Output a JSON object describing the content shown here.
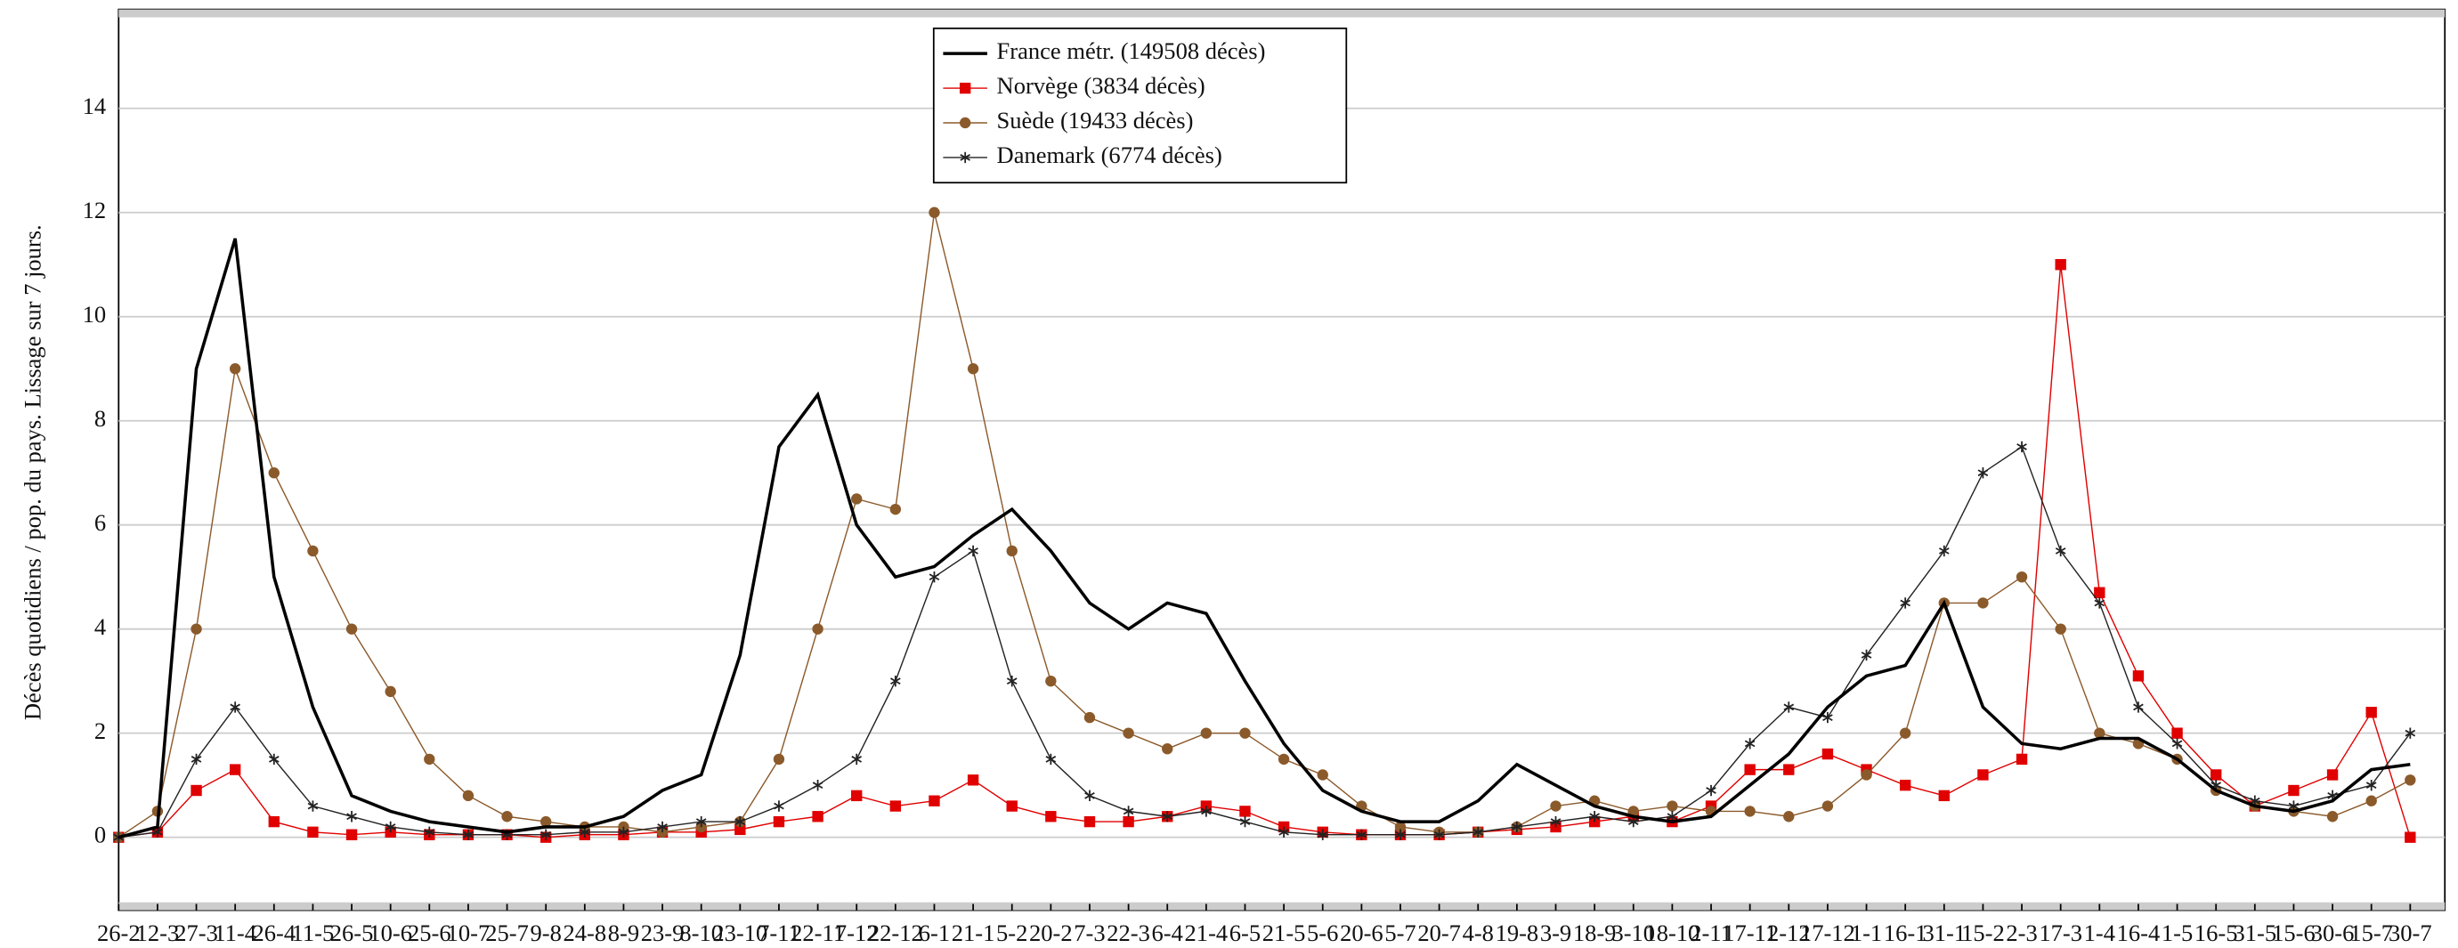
{
  "chart_data": {
    "type": "line",
    "ylabel": "Décès quotidiens / pop. du pays. Lissage sur 7 jours.",
    "categories": [
      "26-2",
      "12-3",
      "27-3",
      "11-4",
      "26-4",
      "11-5",
      "26-5",
      "10-6",
      "25-6",
      "10-7",
      "25-7",
      "9-8",
      "24-8",
      "8-9",
      "23-9",
      "8-10",
      "23-10",
      "7-11",
      "22-11",
      "7-12",
      "22-12",
      "6-1",
      "21-1",
      "5-2",
      "20-2",
      "7-3",
      "22-3",
      "6-4",
      "21-4",
      "6-5",
      "21-5",
      "5-6",
      "20-6",
      "5-7",
      "20-7",
      "4-8",
      "19-8",
      "3-9",
      "18-9",
      "3-10",
      "18-10",
      "2-11",
      "17-11",
      "2-12",
      "17-12",
      "1-1",
      "16-1",
      "31-1",
      "15-2",
      "2-3",
      "17-3",
      "1-4",
      "16-4",
      "1-5",
      "16-5",
      "31-5",
      "15-6",
      "30-6",
      "15-7",
      "30-7"
    ],
    "series": [
      {
        "name": "France métr. (149508 décès)",
        "color": "#000000",
        "marker": "none",
        "values": [
          0,
          0.2,
          9,
          11.5,
          5,
          2.5,
          0.8,
          0.5,
          0.3,
          0.2,
          0.1,
          0.2,
          0.2,
          0.4,
          0.9,
          1.2,
          3.5,
          7.5,
          8.5,
          6,
          5,
          5.2,
          5.8,
          6.3,
          5.5,
          4.5,
          4,
          4.5,
          4.3,
          3,
          1.8,
          0.9,
          0.5,
          0.3,
          0.3,
          0.7,
          1.4,
          1.0,
          0.6,
          0.4,
          0.3,
          0.4,
          1.0,
          1.6,
          2.5,
          3.1,
          3.3,
          4.5,
          2.5,
          1.8,
          1.7,
          1.9,
          1.9,
          1.5,
          0.9,
          0.6,
          0.5,
          0.7,
          1.3,
          1.4
        ]
      },
      {
        "name": "Norvège (3834 décès)",
        "color": "#e00000",
        "marker": "square",
        "values": [
          0,
          0.1,
          0.9,
          1.3,
          0.3,
          0.1,
          0.05,
          0.1,
          0.05,
          0.05,
          0.05,
          0,
          0.05,
          0.05,
          0.1,
          0.1,
          0.15,
          0.3,
          0.4,
          0.8,
          0.6,
          0.7,
          1.1,
          0.6,
          0.4,
          0.3,
          0.3,
          0.4,
          0.6,
          0.5,
          0.2,
          0.1,
          0.05,
          0.05,
          0.05,
          0.1,
          0.15,
          0.2,
          0.3,
          0.4,
          0.3,
          0.6,
          1.3,
          1.3,
          1.6,
          1.3,
          1.0,
          0.8,
          1.2,
          1.5,
          11,
          4.7,
          3.1,
          2.0,
          1.2,
          0.6,
          0.9,
          1.2,
          2.4,
          0
        ]
      },
      {
        "name": "Suède (19433 décès)",
        "color": "#8b5a2b",
        "marker": "circle",
        "values": [
          0,
          0.5,
          4,
          9,
          7,
          5.5,
          4,
          2.8,
          1.5,
          0.8,
          0.4,
          0.3,
          0.2,
          0.2,
          0.1,
          0.2,
          0.3,
          1.5,
          4,
          6.5,
          6.3,
          12,
          9,
          5.5,
          3,
          2.3,
          2,
          1.7,
          2,
          2,
          1.5,
          1.2,
          0.6,
          0.2,
          0.1,
          0.1,
          0.2,
          0.6,
          0.7,
          0.5,
          0.6,
          0.5,
          0.5,
          0.4,
          0.6,
          1.2,
          2,
          4.5,
          4.5,
          5,
          4,
          2,
          1.8,
          1.5,
          0.9,
          0.6,
          0.5,
          0.4,
          0.7,
          1.1
        ]
      },
      {
        "name": "Danemark (6774 décès)",
        "color": "#222222",
        "marker": "star",
        "values": [
          0,
          0.1,
          1.5,
          2.5,
          1.5,
          0.6,
          0.4,
          0.2,
          0.1,
          0.05,
          0.05,
          0.05,
          0.1,
          0.1,
          0.2,
          0.3,
          0.3,
          0.6,
          1.0,
          1.5,
          3,
          5,
          5.5,
          3,
          1.5,
          0.8,
          0.5,
          0.4,
          0.5,
          0.3,
          0.1,
          0.05,
          0.05,
          0.05,
          0.05,
          0.1,
          0.2,
          0.3,
          0.4,
          0.3,
          0.4,
          0.9,
          1.8,
          2.5,
          2.3,
          3.5,
          4.5,
          5.5,
          7,
          7.5,
          5.5,
          4.5,
          2.5,
          1.8,
          1.0,
          0.7,
          0.6,
          0.8,
          1.0,
          2.0
        ]
      }
    ],
    "ylim": [
      -1.4,
      15.9
    ],
    "yticks": [
      0,
      2,
      4,
      6,
      8,
      10,
      12,
      14
    ],
    "grid": true,
    "legend": "upper center"
  }
}
